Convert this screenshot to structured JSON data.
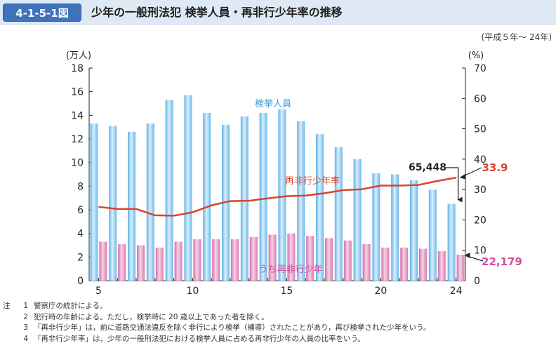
{
  "figure": {
    "number": "4-1-5-1図",
    "title": "少年の一般刑法犯 検挙人員・再非行少年率の推移",
    "period": "(平成５年～ 24年)"
  },
  "chart_data": {
    "type": "bar",
    "x": [
      5,
      6,
      7,
      8,
      9,
      10,
      11,
      12,
      13,
      14,
      15,
      16,
      17,
      18,
      19,
      20,
      21,
      22,
      23,
      24
    ],
    "x_tick_labels": [
      "5",
      "10",
      "15",
      "20",
      "24"
    ],
    "left_axis": {
      "unit_label": "(万人)",
      "ylim": [
        0,
        18
      ],
      "ticks": [
        0,
        2,
        4,
        6,
        8,
        10,
        12,
        14,
        16,
        18
      ]
    },
    "right_axis": {
      "unit_label": "(%)",
      "ylim": [
        0,
        70
      ],
      "ticks": [
        0,
        10,
        20,
        30,
        40,
        50,
        60,
        70
      ]
    },
    "series": [
      {
        "name": "検挙人員",
        "type": "bar",
        "axis": "left",
        "color": "#8ec9ee",
        "values": [
          13.3,
          13.1,
          12.6,
          13.3,
          15.3,
          15.7,
          14.2,
          13.2,
          13.9,
          14.2,
          14.5,
          13.5,
          12.4,
          11.3,
          10.3,
          9.1,
          9.0,
          8.5,
          7.7,
          6.5
        ]
      },
      {
        "name": "うち再非行少年",
        "type": "bar",
        "axis": "left",
        "color": "#e79ac7",
        "values": [
          3.3,
          3.1,
          3.0,
          2.8,
          3.3,
          3.5,
          3.5,
          3.5,
          3.7,
          3.9,
          4.0,
          3.8,
          3.6,
          3.4,
          3.1,
          2.8,
          2.8,
          2.7,
          2.5,
          2.2
        ]
      },
      {
        "name": "再非行少年率",
        "type": "line",
        "axis": "right",
        "color": "#d8432e",
        "values": [
          24.3,
          23.6,
          23.6,
          21.5,
          21.4,
          22.5,
          24.8,
          26.2,
          26.3,
          27.1,
          27.8,
          28.0,
          28.8,
          29.8,
          30.1,
          31.3,
          31.3,
          31.5,
          32.8,
          33.9
        ]
      }
    ],
    "annotations": {
      "arrests_last": "65,448",
      "reoffender_last": "22,179",
      "rate_last": "33.9"
    }
  },
  "notes": {
    "head": "注",
    "items": [
      {
        "num": "1",
        "text": "警察庁の統計による。"
      },
      {
        "num": "2",
        "text": "犯行時の年齢による。ただし，検挙時に 20 歳以上であった者を除く。"
      },
      {
        "num": "3",
        "text": "「再非行少年」は，前に道路交通法違反を除く非行により検挙（補導）されたことがあり，再び検挙された少年をいう。"
      },
      {
        "num": "4",
        "text": "「再非行少年率」は，少年の一般刑法犯における検挙人員に占める再非行少年の人員の比率をいう。"
      }
    ]
  }
}
